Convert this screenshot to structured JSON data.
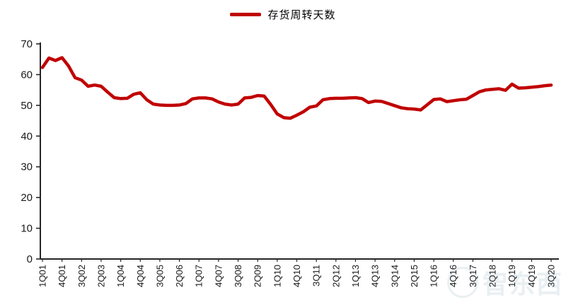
{
  "colors": {
    "line": "#c00000",
    "axis": "#262626",
    "tick_text": "#1a1a1a",
    "background": "#ffffff",
    "watermark": "#5f8aa3"
  },
  "legend": {
    "label": "存货周转天数"
  },
  "watermark": {
    "text": "智东西"
  },
  "chart_data": {
    "type": "line",
    "title": "",
    "xlabel": "",
    "ylabel": "",
    "series_name": "存货周转天数",
    "legend_position": "top-center",
    "grid": false,
    "ylim": [
      0,
      70
    ],
    "ytick_step": 10,
    "x_label_every": 3,
    "categories": [
      "1Q01",
      "2Q01",
      "3Q01",
      "4Q01",
      "1Q02",
      "2Q02",
      "3Q02",
      "4Q02",
      "1Q03",
      "2Q03",
      "3Q03",
      "4Q03",
      "1Q04",
      "2Q04",
      "3Q04",
      "4Q04",
      "1Q05",
      "2Q05",
      "3Q05",
      "4Q05",
      "1Q06",
      "2Q06",
      "3Q06",
      "4Q06",
      "1Q07",
      "2Q07",
      "3Q07",
      "4Q07",
      "1Q08",
      "2Q08",
      "3Q08",
      "4Q08",
      "1Q09",
      "2Q09",
      "3Q09",
      "4Q09",
      "1Q10",
      "2Q10",
      "3Q10",
      "4Q10",
      "1Q11",
      "2Q11",
      "3Q11",
      "4Q11",
      "1Q12",
      "2Q12",
      "3Q12",
      "4Q12",
      "1Q13",
      "2Q13",
      "3Q13",
      "4Q13",
      "1Q14",
      "2Q14",
      "3Q14",
      "4Q14",
      "1Q15",
      "2Q15",
      "3Q15",
      "4Q15",
      "1Q16",
      "2Q16",
      "3Q16",
      "4Q16",
      "1Q17",
      "2Q17",
      "3Q17",
      "4Q17",
      "1Q18",
      "2Q18",
      "3Q18",
      "4Q18",
      "1Q19",
      "2Q19",
      "3Q19",
      "4Q19",
      "1Q20",
      "2Q20",
      "3Q20"
    ],
    "values": [
      62.3,
      65.4,
      64.6,
      65.5,
      62.8,
      59.0,
      58.2,
      56.2,
      56.6,
      56.2,
      54.3,
      52.5,
      52.2,
      52.3,
      53.6,
      54.1,
      51.8,
      50.4,
      50.1,
      50.0,
      50.0,
      50.1,
      50.6,
      52.1,
      52.4,
      52.4,
      52.1,
      51.1,
      50.4,
      50.1,
      50.4,
      52.4,
      52.6,
      53.2,
      53.0,
      50.3,
      47.2,
      46.0,
      45.8,
      46.8,
      47.9,
      49.4,
      49.8,
      51.8,
      52.2,
      52.3,
      52.3,
      52.4,
      52.5,
      52.2,
      50.9,
      51.4,
      51.3,
      50.6,
      49.9,
      49.2,
      48.9,
      48.8,
      48.5,
      50.2,
      51.9,
      52.1,
      51.2,
      51.5,
      51.8,
      52.0,
      53.2,
      54.4,
      55.0,
      55.2,
      55.4,
      54.9,
      56.9,
      55.6,
      55.7,
      55.9,
      56.1,
      56.4,
      56.6
    ]
  }
}
